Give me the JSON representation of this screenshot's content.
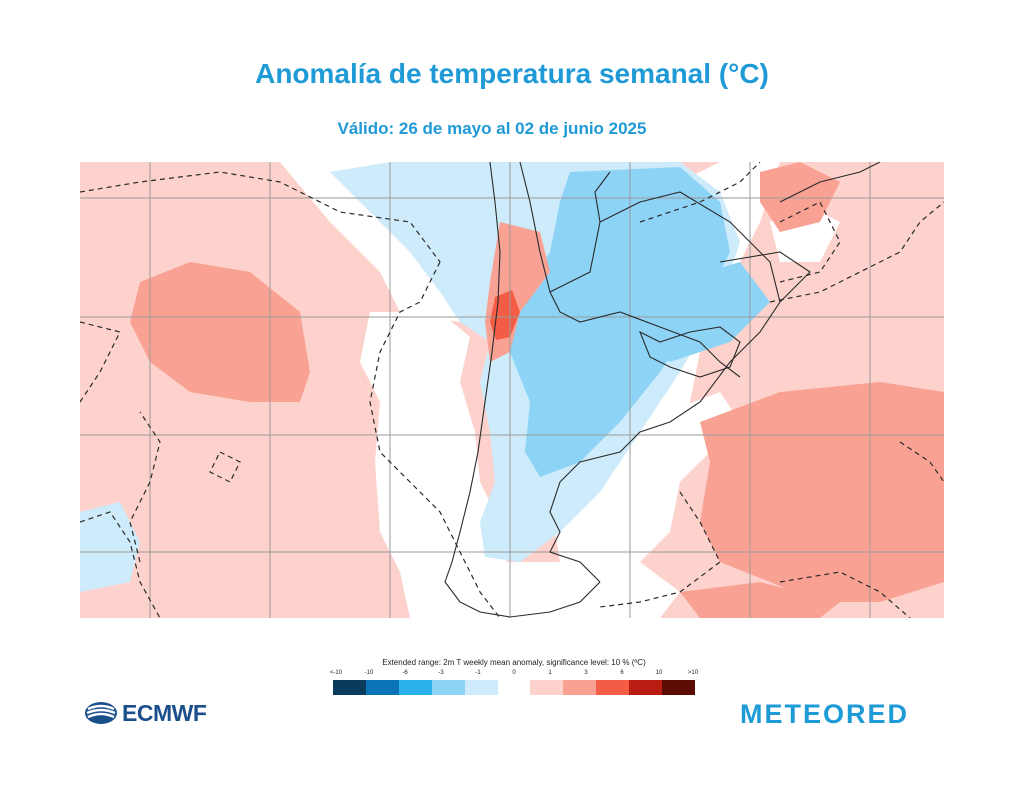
{
  "header": {
    "title": "Anomalía de temperatura semanal  (°C)",
    "subtitle": "Válido: 26 de mayo al 02 de junio 2025"
  },
  "legend": {
    "title": "Extended range: 2m T weekly mean anomaly, significance level: 10 % (ºC)",
    "ticks": [
      "<-10",
      "-10",
      "-6",
      "-3",
      "-1",
      "0",
      "1",
      "3",
      "6",
      "10",
      ">10"
    ],
    "colors": [
      "#0a3a5c",
      "#0b74b7",
      "#2ab0ea",
      "#8dd3f5",
      "#cdebfa",
      "#ffffff",
      "#fdd2cd",
      "#f9a294",
      "#f45d45",
      "#b91c10",
      "#5c0b05"
    ]
  },
  "logos": {
    "left": "ECMWF",
    "right": "METEORED"
  },
  "map": {
    "region": "South America (southern cone) and adjacent oceans",
    "palette": {
      "ocean_warm": "#fdd2cd",
      "warm_core": "#f9a294",
      "hot_spot": "#f45d45",
      "cold_light": "#cdebfa",
      "cold_medium": "#8dd3f5",
      "neutral": "#ffffff"
    }
  }
}
